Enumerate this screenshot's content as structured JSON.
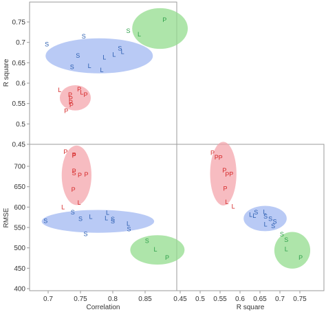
{
  "chart_data": [
    {
      "type": "scatter",
      "panel": "R square vs Correlation",
      "x_variable": "Correlation",
      "y_variable": "R square",
      "ylabel": "R square",
      "ylim": [
        0.45,
        0.8
      ],
      "yticks": [
        "0.45",
        "0.5",
        "0.55",
        "0.6",
        "0.65",
        "0.7",
        "0.75"
      ],
      "grid": false,
      "points": [
        {
          "label": "P",
          "x": 0.88,
          "y": 0.755
        },
        {
          "label": "S",
          "x": 0.824,
          "y": 0.728
        },
        {
          "label": "L",
          "x": 0.841,
          "y": 0.72
        },
        {
          "label": "S",
          "x": 0.755,
          "y": 0.715
        },
        {
          "label": "S",
          "x": 0.698,
          "y": 0.695
        },
        {
          "label": "S",
          "x": 0.811,
          "y": 0.685
        },
        {
          "label": "L",
          "x": 0.815,
          "y": 0.677
        },
        {
          "label": "L",
          "x": 0.802,
          "y": 0.67
        },
        {
          "label": "S",
          "x": 0.746,
          "y": 0.667
        },
        {
          "label": "L",
          "x": 0.787,
          "y": 0.663
        },
        {
          "label": "L",
          "x": 0.764,
          "y": 0.642
        },
        {
          "label": "S",
          "x": 0.737,
          "y": 0.64
        },
        {
          "label": "L",
          "x": 0.783,
          "y": 0.632
        },
        {
          "label": "L",
          "x": 0.718,
          "y": 0.583
        },
        {
          "label": "P",
          "x": 0.748,
          "y": 0.585
        },
        {
          "label": "L",
          "x": 0.752,
          "y": 0.577
        },
        {
          "label": "P",
          "x": 0.734,
          "y": 0.571
        },
        {
          "label": "P",
          "x": 0.758,
          "y": 0.571
        },
        {
          "label": "P",
          "x": 0.735,
          "y": 0.562
        },
        {
          "label": "P",
          "x": 0.735,
          "y": 0.553
        },
        {
          "label": "P",
          "x": 0.736,
          "y": 0.546
        },
        {
          "label": "P",
          "x": 0.728,
          "y": 0.532
        }
      ],
      "ellipses": [
        {
          "group": "P",
          "cx": 0.873,
          "cy": 0.734,
          "rx": 0.043,
          "ry": 0.05
        },
        {
          "group": "S",
          "cx": 0.779,
          "cy": 0.667,
          "rx": 0.083,
          "ry": 0.043
        },
        {
          "group": "L",
          "cx": 0.742,
          "cy": 0.564,
          "rx": 0.024,
          "ry": 0.031
        }
      ]
    },
    {
      "type": "scatter",
      "panel": "RMSE vs Correlation",
      "x_variable": "Correlation",
      "y_variable": "RMSE",
      "xlabel": "Correlation",
      "ylabel": "RMSE",
      "xlim": [
        0.675,
        0.9
      ],
      "ylim": [
        400,
        730
      ],
      "xticks": [
        "0.7",
        "0.75",
        "0.8",
        "0.85"
      ],
      "yticks": [
        "400",
        "450",
        "500",
        "550",
        "600",
        "650",
        "700"
      ],
      "grid": false,
      "points": [
        {
          "label": "P",
          "x": 0.727,
          "y": 735
        },
        {
          "label": "P",
          "x": 0.74,
          "y": 728
        },
        {
          "label": "P",
          "x": 0.74,
          "y": 726
        },
        {
          "label": "P",
          "x": 0.74,
          "y": 688
        },
        {
          "label": "P",
          "x": 0.749,
          "y": 678
        },
        {
          "label": "P",
          "x": 0.759,
          "y": 680
        },
        {
          "label": "S",
          "x": 0.74,
          "y": 683
        },
        {
          "label": "P",
          "x": 0.739,
          "y": 643
        },
        {
          "label": "L",
          "x": 0.748,
          "y": 611
        },
        {
          "label": "L",
          "x": 0.723,
          "y": 600
        },
        {
          "label": "S",
          "x": 0.738,
          "y": 587
        },
        {
          "label": "S",
          "x": 0.696,
          "y": 566
        },
        {
          "label": "S",
          "x": 0.75,
          "y": 571
        },
        {
          "label": "L",
          "x": 0.766,
          "y": 576
        },
        {
          "label": "L",
          "x": 0.792,
          "y": 586
        },
        {
          "label": "L",
          "x": 0.79,
          "y": 573
        },
        {
          "label": "S",
          "x": 0.8,
          "y": 570
        },
        {
          "label": "S",
          "x": 0.8,
          "y": 565
        },
        {
          "label": "L",
          "x": 0.824,
          "y": 559
        },
        {
          "label": "S",
          "x": 0.825,
          "y": 546
        },
        {
          "label": "S",
          "x": 0.758,
          "y": 534
        },
        {
          "label": "S",
          "x": 0.853,
          "y": 517
        },
        {
          "label": "L",
          "x": 0.866,
          "y": 496
        },
        {
          "label": "P",
          "x": 0.884,
          "y": 476
        }
      ],
      "ellipses": [
        {
          "group": "P",
          "cx": 0.744,
          "cy": 678,
          "rx": 0.023,
          "ry": 73
        },
        {
          "group": "S",
          "cx": 0.777,
          "cy": 565,
          "rx": 0.087,
          "ry": 28
        },
        {
          "group": "L",
          "cx": 0.869,
          "cy": 495,
          "rx": 0.042,
          "ry": 36
        }
      ]
    },
    {
      "type": "scatter",
      "panel": "RMSE vs R square",
      "x_variable": "R square",
      "y_variable": "RMSE",
      "xlabel": "R square",
      "xlim": [
        0.43,
        0.8
      ],
      "ylim": [
        400,
        730
      ],
      "xticks": [
        "0.45",
        "0.5",
        "0.55",
        "0.6",
        "0.65",
        "0.7",
        "0.75"
      ],
      "grid": false,
      "points": [
        {
          "label": "P",
          "x": 0.531,
          "y": 733
        },
        {
          "label": "P",
          "x": 0.541,
          "y": 722
        },
        {
          "label": "P",
          "x": 0.551,
          "y": 721
        },
        {
          "label": "P",
          "x": 0.561,
          "y": 690
        },
        {
          "label": "P",
          "x": 0.568,
          "y": 680
        },
        {
          "label": "P",
          "x": 0.578,
          "y": 681
        },
        {
          "label": "P",
          "x": 0.563,
          "y": 645
        },
        {
          "label": "L",
          "x": 0.567,
          "y": 612
        },
        {
          "label": "L",
          "x": 0.583,
          "y": 601
        },
        {
          "label": "L",
          "x": 0.627,
          "y": 581
        },
        {
          "label": "L",
          "x": 0.636,
          "y": 579
        },
        {
          "label": "S",
          "x": 0.64,
          "y": 587
        },
        {
          "label": "L",
          "x": 0.662,
          "y": 588
        },
        {
          "label": "S",
          "x": 0.664,
          "y": 577
        },
        {
          "label": "S",
          "x": 0.676,
          "y": 571
        },
        {
          "label": "S",
          "x": 0.687,
          "y": 564
        },
        {
          "label": "L",
          "x": 0.664,
          "y": 558
        },
        {
          "label": "S",
          "x": 0.683,
          "y": 553
        },
        {
          "label": "S",
          "x": 0.705,
          "y": 533
        },
        {
          "label": "S",
          "x": 0.716,
          "y": 520
        },
        {
          "label": "L",
          "x": 0.716,
          "y": 497
        },
        {
          "label": "P",
          "x": 0.752,
          "y": 476
        }
      ],
      "ellipses": [
        {
          "group": "P",
          "cx": 0.558,
          "cy": 682,
          "rx": 0.033,
          "ry": 78
        },
        {
          "group": "S",
          "cx": 0.663,
          "cy": 572,
          "rx": 0.054,
          "ry": 31
        },
        {
          "group": "L",
          "cx": 0.731,
          "cy": 494,
          "rx": 0.045,
          "ry": 45
        }
      ]
    }
  ],
  "style": {
    "groups": {
      "P": {
        "text_color": "#d62828",
        "fill": "#f3a0a6",
        "fill_opacity": 0.7
      },
      "S": {
        "text_color": "#2a5db0",
        "fill": "#8aa6ee",
        "fill_opacity": 0.6
      },
      "L": {
        "text_color": "#2a5db0",
        "fill": "#8aa6ee",
        "fill_opacity": 0.6
      }
    },
    "label_colors": {
      "P": "#d62828",
      "S": "#2a5db0",
      "L": "#2a5db0",
      "top": "#2fa14a"
    }
  }
}
